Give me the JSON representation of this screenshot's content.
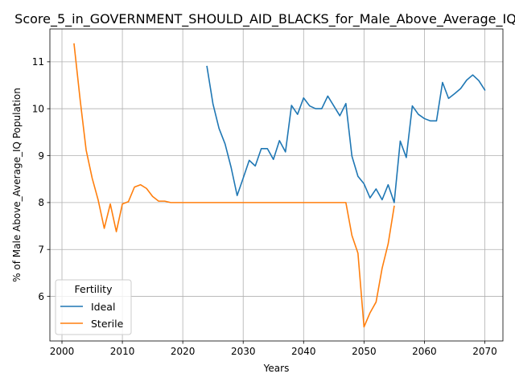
{
  "chart_data": {
    "type": "line",
    "title": "Score_5_in_GOVERNMENT_SHOULD_AID_BLACKS_for_Male_Above_Average_IQ",
    "xlabel": "Years",
    "ylabel": "% of Male Above_Average_IQ Population",
    "xlim": [
      1998,
      2073
    ],
    "ylim": [
      5.05,
      11.7
    ],
    "xticks": [
      2000,
      2010,
      2020,
      2030,
      2040,
      2050,
      2060,
      2070
    ],
    "yticks": [
      6,
      7,
      8,
      9,
      10,
      11
    ],
    "grid": true,
    "legend": {
      "title": "Fertility",
      "position": "lower-left"
    },
    "series": [
      {
        "name": "Ideal",
        "color": "#1f77b4",
        "x": [
          2024,
          2025,
          2026,
          2027,
          2028,
          2029,
          2030,
          2031,
          2032,
          2033,
          2034,
          2035,
          2036,
          2037,
          2038,
          2039,
          2040,
          2041,
          2042,
          2043,
          2044,
          2045,
          2046,
          2047,
          2048,
          2049,
          2050,
          2051,
          2052,
          2053,
          2054,
          2055,
          2056,
          2057,
          2058,
          2059,
          2060,
          2061,
          2062,
          2063,
          2064,
          2065,
          2066,
          2067,
          2068,
          2069,
          2070
        ],
        "y": [
          10.9,
          10.1,
          9.58,
          9.25,
          8.75,
          8.15,
          8.52,
          8.9,
          8.78,
          9.15,
          9.15,
          8.92,
          9.32,
          9.08,
          10.07,
          9.88,
          10.23,
          10.06,
          10.0,
          10.0,
          10.27,
          10.06,
          9.85,
          10.11,
          8.99,
          8.56,
          8.4,
          8.1,
          8.29,
          8.06,
          8.38,
          8.0,
          9.31,
          8.96,
          10.06,
          9.88,
          9.79,
          9.74,
          9.74,
          10.56,
          10.22,
          10.32,
          10.43,
          10.61,
          10.72,
          10.6,
          10.4
        ]
      },
      {
        "name": "Sterile",
        "color": "#ff7f0e",
        "x": [
          2002,
          2003,
          2004,
          2005,
          2006,
          2007,
          2008,
          2009,
          2010,
          2011,
          2012,
          2013,
          2014,
          2015,
          2016,
          2017,
          2018,
          2019,
          2020,
          2021,
          2022,
          2023,
          2024,
          2025,
          2026,
          2027,
          2028,
          2029,
          2030,
          2031,
          2032,
          2033,
          2034,
          2035,
          2036,
          2037,
          2038,
          2039,
          2040,
          2041,
          2042,
          2043,
          2044,
          2045,
          2046,
          2047,
          2048,
          2049,
          2050,
          2051,
          2052,
          2053,
          2054,
          2055
        ],
        "y": [
          11.38,
          10.2,
          9.12,
          8.52,
          8.05,
          7.45,
          7.97,
          7.38,
          7.97,
          8.02,
          8.33,
          8.38,
          8.3,
          8.13,
          8.03,
          8.03,
          8.0,
          8.0,
          8.0,
          8.0,
          8.0,
          8.0,
          8.0,
          8.0,
          8.0,
          8.0,
          8.0,
          8.0,
          8.0,
          8.0,
          8.0,
          8.0,
          8.0,
          8.0,
          8.0,
          8.0,
          8.0,
          8.0,
          8.0,
          8.0,
          8.0,
          8.0,
          8.0,
          8.0,
          8.0,
          8.0,
          7.3,
          6.92,
          5.35,
          5.65,
          5.88,
          6.6,
          7.12,
          7.92
        ]
      }
    ]
  }
}
